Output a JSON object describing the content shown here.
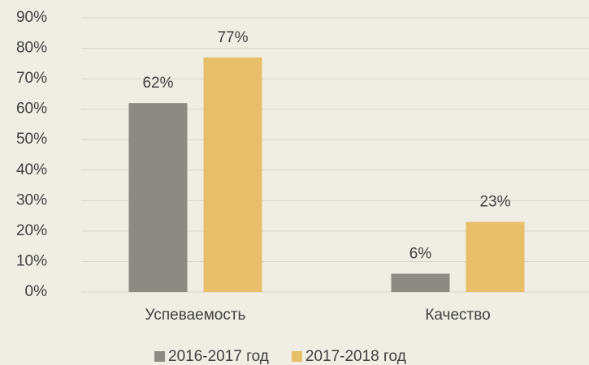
{
  "chart_data": {
    "type": "bar",
    "categories": [
      "Успеваемость",
      "Качество"
    ],
    "series": [
      {
        "name": "2016-2017 год",
        "color": "#8c8b83",
        "values": [
          62,
          6
        ],
        "value_labels": [
          "62%",
          "6%"
        ]
      },
      {
        "name": "2017-2018 год",
        "color": "#e6bf68",
        "values": [
          77,
          23
        ],
        "value_labels": [
          "77%",
          "23%"
        ]
      }
    ],
    "ylim": [
      0,
      90
    ],
    "yticks": [
      {
        "value": 0,
        "label": "0%"
      },
      {
        "value": 10,
        "label": "10%"
      },
      {
        "value": 20,
        "label": "20%"
      },
      {
        "value": 30,
        "label": "30%"
      },
      {
        "value": 40,
        "label": "40%"
      },
      {
        "value": 50,
        "label": "50%"
      },
      {
        "value": 60,
        "label": "60%"
      },
      {
        "value": 70,
        "label": "70%"
      },
      {
        "value": 80,
        "label": "80%"
      },
      {
        "value": 90,
        "label": "90%"
      }
    ],
    "grid": true,
    "legend": "bottom"
  }
}
